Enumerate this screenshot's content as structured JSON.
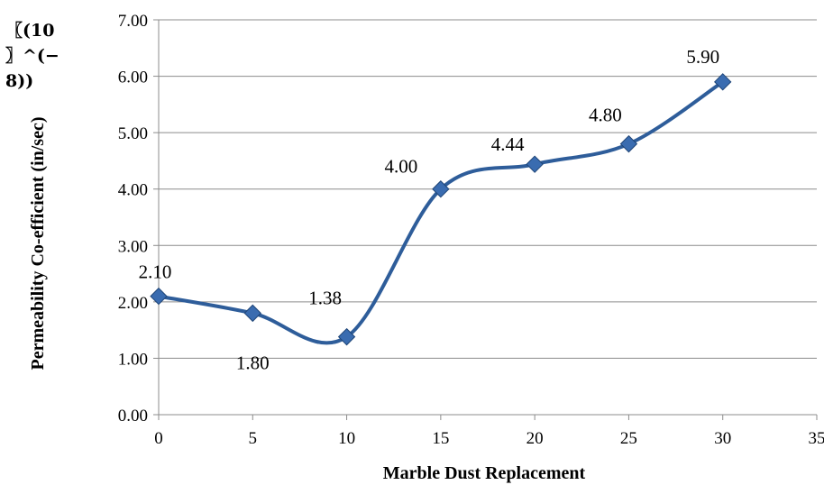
{
  "chart_data": {
    "type": "line",
    "xlabel": "Marble Dust Replacement",
    "ylabel": "Permeability Co-efficient (in/sec)",
    "ylabel_fragment": [
      "〖(10",
      "〗^(−",
      "8))"
    ],
    "xlim": [
      0,
      35
    ],
    "ylim": [
      0,
      7
    ],
    "x_ticks": [
      "0",
      "5",
      "10",
      "15",
      "20",
      "25",
      "30",
      "35"
    ],
    "y_ticks": [
      "0.00",
      "1.00",
      "2.00",
      "3.00",
      "4.00",
      "5.00",
      "6.00",
      "7.00"
    ],
    "grid": "horizontal",
    "smooth": true,
    "marker": "diamond",
    "colors": {
      "line": "#2e5d9a",
      "marker": "#3a6cb0",
      "grid": "#8c8c8c",
      "axis": "#8c8c8c"
    },
    "series": [
      {
        "x": [
          0,
          5,
          10,
          15,
          20,
          25,
          30
        ],
        "y": [
          2.1,
          1.8,
          1.38,
          4.0,
          4.44,
          4.8,
          5.9
        ],
        "data_labels": [
          "2.10",
          "1.80",
          "1.38",
          "4.00",
          "4.44",
          "4.80",
          "5.90"
        ]
      }
    ]
  }
}
